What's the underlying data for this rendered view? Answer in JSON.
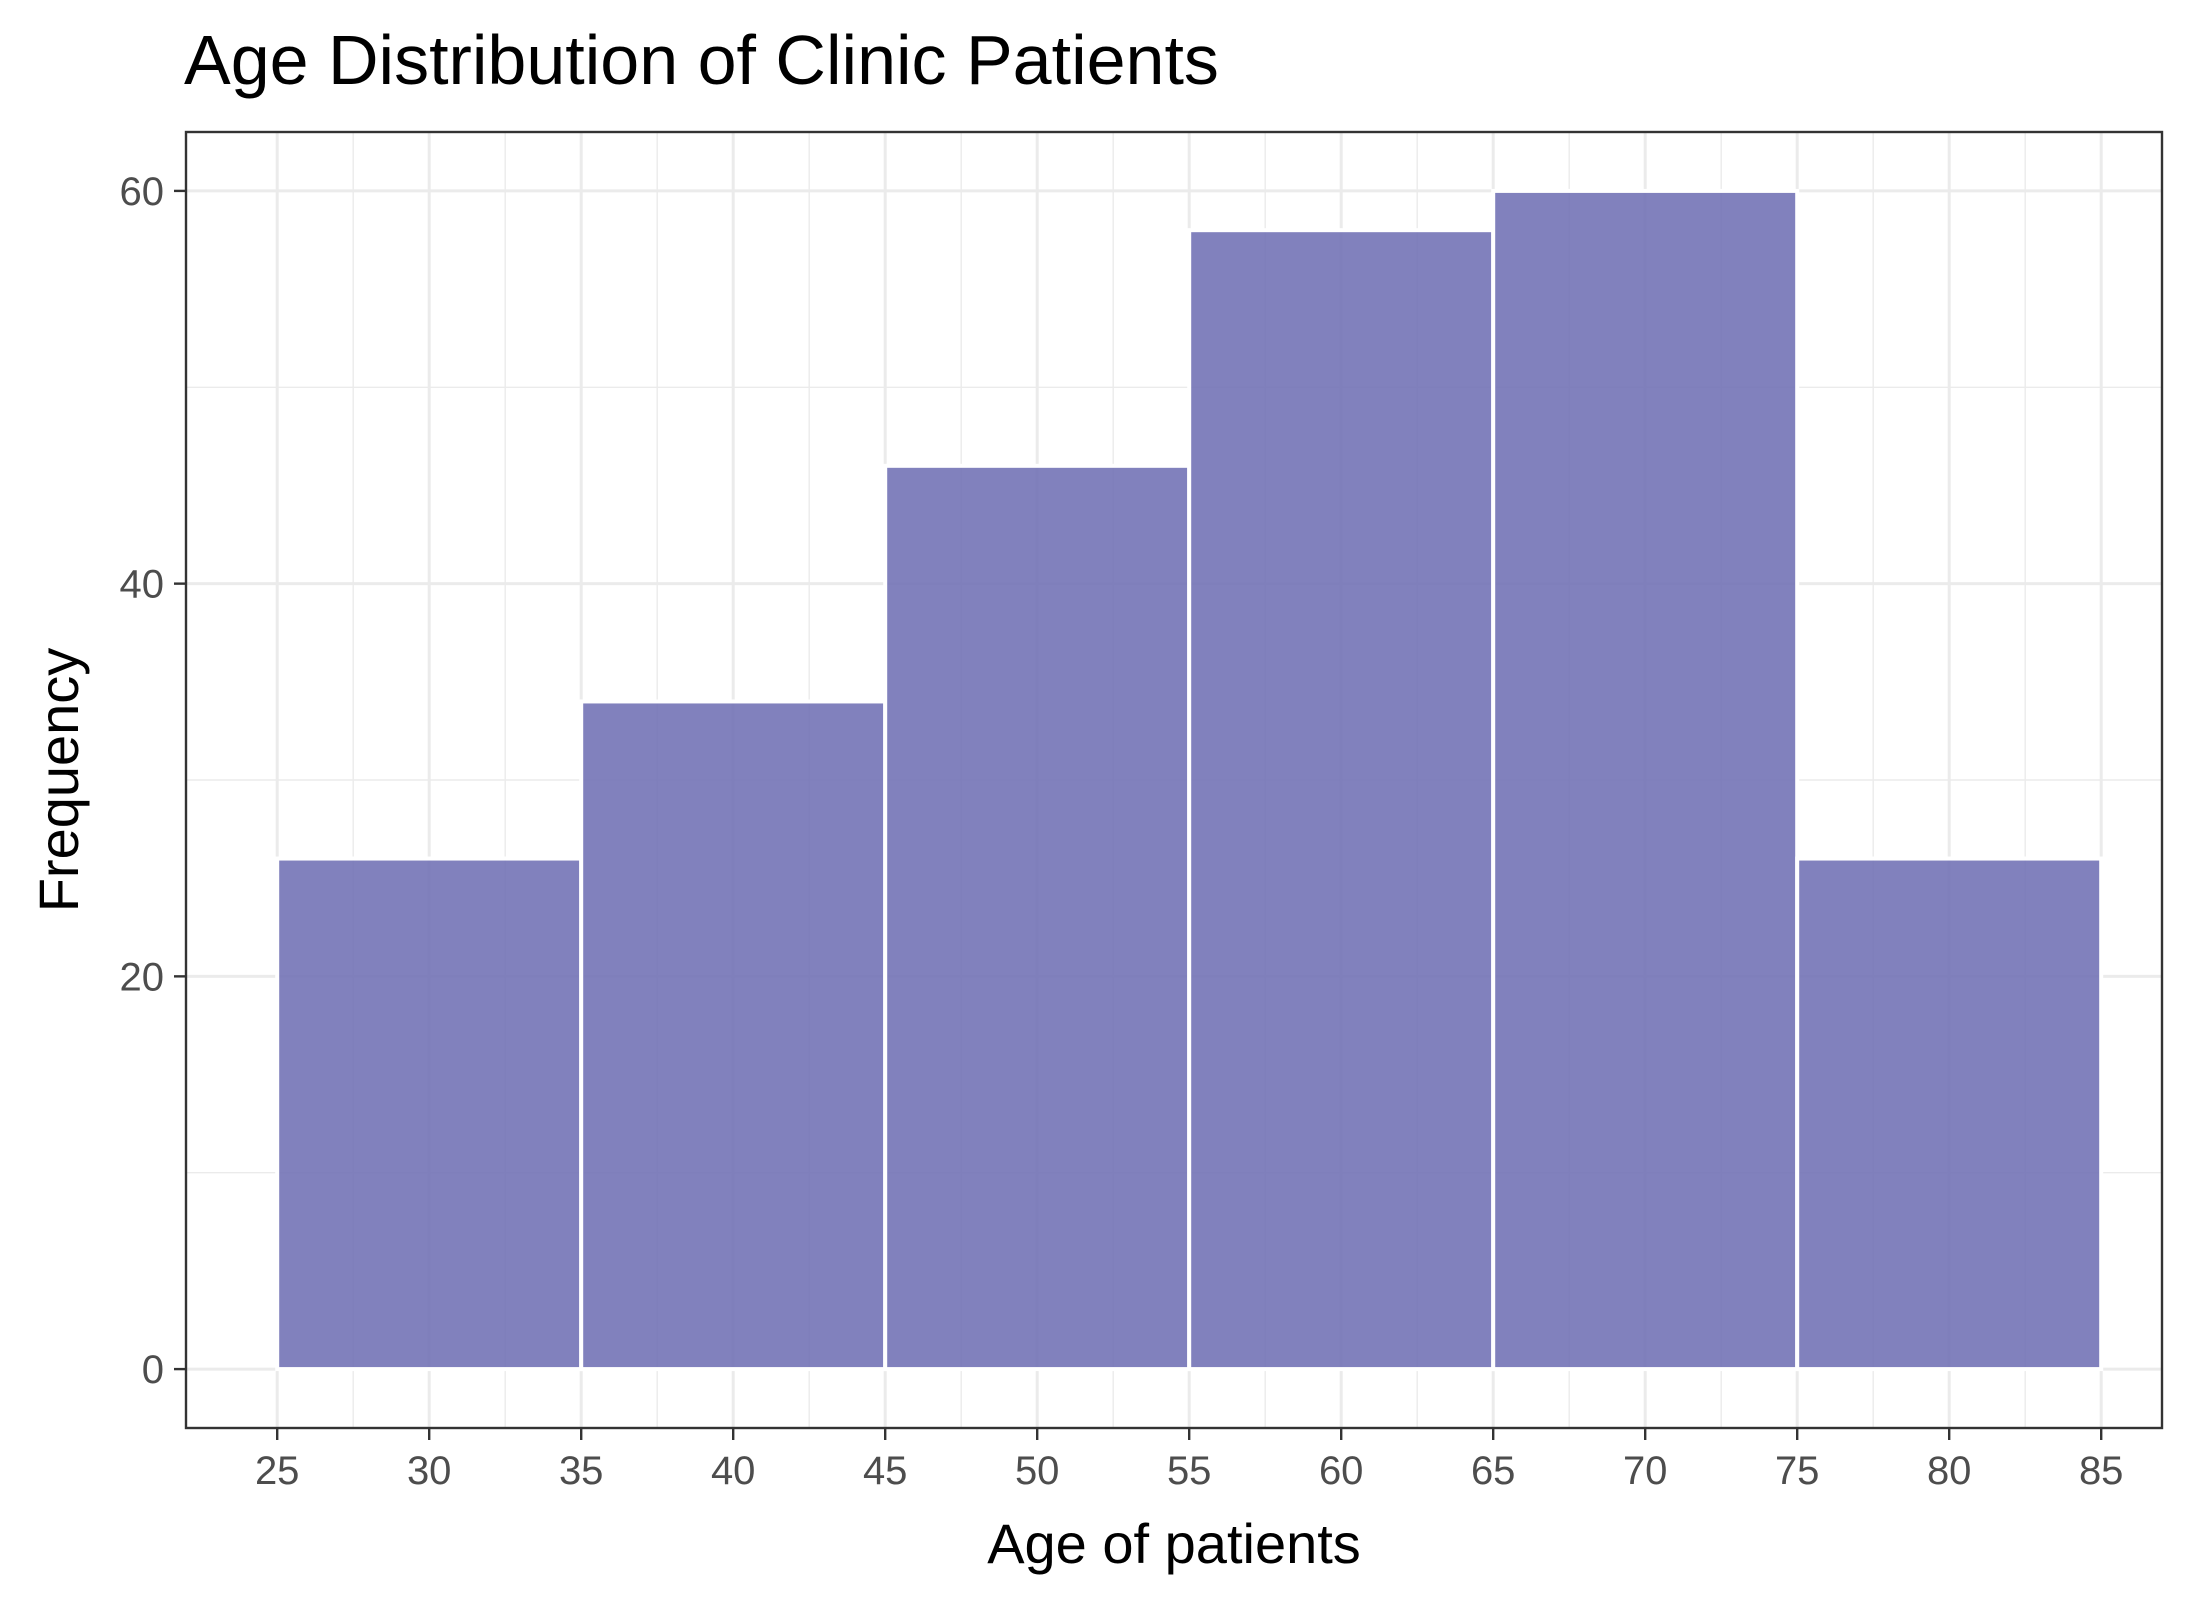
{
  "chart_data": {
    "type": "bar",
    "title": "Age Distribution of Clinic Patients",
    "xlabel": "Age of patients",
    "ylabel": "Frequency",
    "bins": [
      {
        "start": 25,
        "end": 35,
        "count": 26
      },
      {
        "start": 35,
        "end": 45,
        "count": 34
      },
      {
        "start": 45,
        "end": 55,
        "count": 46
      },
      {
        "start": 55,
        "end": 65,
        "count": 58
      },
      {
        "start": 65,
        "end": 75,
        "count": 60
      },
      {
        "start": 75,
        "end": 85,
        "count": 26
      }
    ],
    "xlim": [
      22,
      87
    ],
    "ylim": [
      -3,
      63
    ],
    "x_ticks": [
      25,
      30,
      35,
      40,
      45,
      50,
      55,
      60,
      65,
      70,
      75,
      80,
      85
    ],
    "y_ticks": [
      0,
      20,
      40,
      60
    ],
    "grid": true,
    "legend": "none",
    "colors": {
      "bar_fill": "#6f6fb4",
      "bar_outline": "#ffffff",
      "panel_border": "#333333",
      "grid": "#ebebeb",
      "tick_text": "#4d4d4d",
      "title_text": "#000000"
    }
  }
}
